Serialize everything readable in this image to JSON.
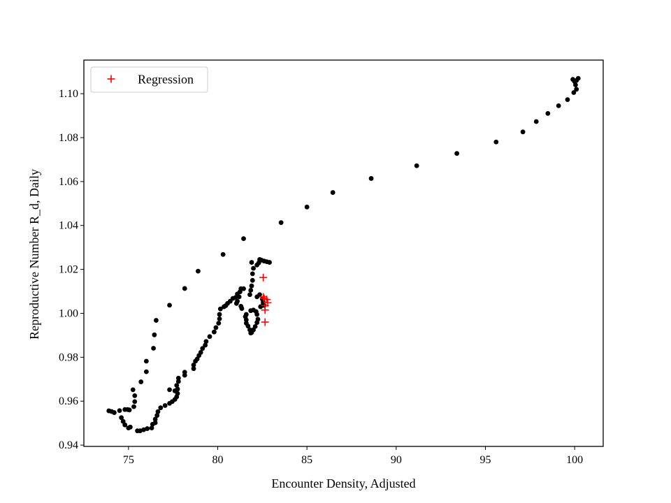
{
  "chart_data": {
    "type": "scatter",
    "title": "",
    "xlabel": "Encounter Density, Adjusted",
    "ylabel": "Reproductive Number R_d, Daily",
    "xlim": [
      72.5,
      101.6
    ],
    "ylim": [
      0.9394,
      1.1153
    ],
    "xticks": [
      75,
      80,
      85,
      90,
      95,
      100
    ],
    "yticks": [
      0.94,
      0.96,
      0.98,
      1.0,
      1.02,
      1.04,
      1.06,
      1.08,
      1.1
    ],
    "ytick_labels": [
      "0.94",
      "0.96",
      "0.98",
      "1.00",
      "1.02",
      "1.04",
      "1.06",
      "1.08",
      "1.10"
    ],
    "legend": {
      "position": "top-left",
      "entries": [
        {
          "label": "Regression",
          "marker": "plus",
          "color": "#ff0000"
        }
      ]
    },
    "colors": {
      "data": "#000000",
      "regression": "#ff0000"
    },
    "series": [
      {
        "name": "data",
        "marker": "dot",
        "color": "#000000",
        "points": [
          [
            100.2,
            1.107
          ],
          [
            100.1,
            1.106
          ],
          [
            99.9,
            1.1065
          ],
          [
            100.0,
            1.1055
          ],
          [
            100.05,
            1.104
          ],
          [
            100.1,
            1.102
          ],
          [
            99.95,
            1.1005
          ],
          [
            99.6,
            1.0973
          ],
          [
            99.1,
            1.0945
          ],
          [
            98.5,
            1.091
          ],
          [
            97.85,
            1.0873
          ],
          [
            97.1,
            1.0826
          ],
          [
            95.6,
            1.078
          ],
          [
            93.4,
            1.0728
          ],
          [
            91.15,
            1.0672
          ],
          [
            88.6,
            1.0614
          ],
          [
            86.45,
            1.055
          ],
          [
            85.0,
            1.0484
          ],
          [
            83.55,
            1.0413
          ],
          [
            81.45,
            1.034
          ],
          [
            80.3,
            1.0268
          ],
          [
            78.9,
            1.0192
          ],
          [
            78.15,
            1.0113
          ],
          [
            77.3,
            1.0037
          ],
          [
            76.55,
            0.9968
          ],
          [
            76.45,
            0.9902
          ],
          [
            76.4,
            0.9841
          ],
          [
            76.0,
            0.9782
          ],
          [
            76.0,
            0.9734
          ],
          [
            75.7,
            0.9688
          ],
          [
            75.25,
            0.9652
          ],
          [
            75.35,
            0.9625
          ],
          [
            75.35,
            0.9598
          ],
          [
            75.3,
            0.9575
          ],
          [
            75.05,
            0.956
          ],
          [
            74.95,
            0.9562
          ],
          [
            74.8,
            0.9562
          ],
          [
            74.5,
            0.9557
          ],
          [
            74.2,
            0.9548
          ],
          [
            74.05,
            0.9553
          ],
          [
            73.9,
            0.9556
          ],
          [
            74.6,
            0.9525
          ],
          [
            74.7,
            0.9508
          ],
          [
            74.8,
            0.9492
          ],
          [
            75.0,
            0.9478
          ],
          [
            75.1,
            0.9482
          ],
          [
            75.5,
            0.9465
          ],
          [
            75.65,
            0.9465
          ],
          [
            75.85,
            0.947
          ],
          [
            76.05,
            0.9475
          ],
          [
            76.3,
            0.9478
          ],
          [
            76.35,
            0.9495
          ],
          [
            76.5,
            0.9502
          ],
          [
            76.5,
            0.9518
          ],
          [
            76.6,
            0.9535
          ],
          [
            76.65,
            0.9552
          ],
          [
            76.8,
            0.957
          ],
          [
            77.05,
            0.958
          ],
          [
            77.3,
            0.959
          ],
          [
            77.45,
            0.9598
          ],
          [
            77.6,
            0.9608
          ],
          [
            77.7,
            0.962
          ],
          [
            77.75,
            0.9635
          ],
          [
            77.75,
            0.9655
          ],
          [
            77.7,
            0.9672
          ],
          [
            77.8,
            0.969
          ],
          [
            77.8,
            0.9705
          ],
          [
            77.3,
            0.9652
          ],
          [
            77.6,
            0.9647
          ],
          [
            78.15,
            0.9718
          ],
          [
            78.15,
            0.9732
          ],
          [
            78.65,
            0.9748
          ],
          [
            78.65,
            0.9765
          ],
          [
            78.75,
            0.9782
          ],
          [
            78.85,
            0.9792
          ],
          [
            78.95,
            0.9808
          ],
          [
            79.05,
            0.9822
          ],
          [
            79.15,
            0.984
          ],
          [
            79.3,
            0.9855
          ],
          [
            79.35,
            0.9872
          ],
          [
            79.55,
            0.9894
          ],
          [
            79.8,
            0.9915
          ],
          [
            79.9,
            0.9935
          ],
          [
            80.05,
            0.9955
          ],
          [
            80.1,
            0.9975
          ],
          [
            80.1,
            0.9995
          ],
          [
            80.15,
            1.002
          ],
          [
            80.35,
            1.003
          ],
          [
            80.45,
            1.0035
          ],
          [
            80.55,
            1.0045
          ],
          [
            80.7,
            1.0055
          ],
          [
            80.85,
            1.0068
          ],
          [
            81.0,
            1.0072
          ],
          [
            81.1,
            1.0088
          ],
          [
            81.25,
            1.0098
          ],
          [
            81.3,
            1.0112
          ],
          [
            81.45,
            1.0112
          ],
          [
            81.2,
            1.0075
          ],
          [
            81.1,
            1.0055
          ],
          [
            81.05,
            1.0045
          ],
          [
            81.3,
            1.0032
          ],
          [
            81.35,
            1.0022
          ],
          [
            81.6,
            0.9995
          ],
          [
            81.55,
            0.9985
          ],
          [
            81.6,
            0.997
          ],
          [
            81.6,
            0.9955
          ],
          [
            81.7,
            0.9942
          ],
          [
            81.8,
            0.9925
          ],
          [
            81.85,
            0.991
          ],
          [
            81.9,
            0.9912
          ],
          [
            82.0,
            0.9925
          ],
          [
            82.1,
            0.994
          ],
          [
            82.2,
            0.9958
          ],
          [
            82.25,
            0.9973
          ],
          [
            82.2,
            0.9995
          ],
          [
            82.15,
            1.0008
          ],
          [
            82.0,
            1.0015
          ],
          [
            81.85,
            1.0012
          ],
          [
            82.4,
            1.003
          ],
          [
            82.55,
            1.0045
          ],
          [
            81.8,
            1.0085
          ],
          [
            81.85,
            1.0105
          ],
          [
            81.9,
            1.0125
          ],
          [
            81.95,
            1.015
          ],
          [
            81.95,
            1.018
          ],
          [
            82.0,
            1.0205
          ],
          [
            82.3,
            1.023
          ],
          [
            82.35,
            1.0245
          ],
          [
            82.45,
            1.0242
          ],
          [
            82.6,
            1.0238
          ],
          [
            82.75,
            1.0235
          ],
          [
            82.9,
            1.0232
          ],
          [
            82.2,
            1.022
          ],
          [
            81.9,
            1.0232
          ],
          [
            82.2,
            1.0075
          ],
          [
            82.35,
            1.0085
          ],
          [
            82.5,
            1.0065
          ],
          [
            82.55,
            1.0052
          ],
          [
            82.6,
            1.0036
          ]
        ]
      },
      {
        "name": "Regression",
        "marker": "plus",
        "color": "#ff0000",
        "points": [
          [
            82.55,
            1.0163
          ],
          [
            82.55,
            1.0075
          ],
          [
            82.6,
            1.0068
          ],
          [
            82.75,
            1.0063
          ],
          [
            82.8,
            1.0048
          ],
          [
            82.65,
            1.0035
          ],
          [
            82.65,
            1.0015
          ],
          [
            82.65,
            0.996
          ]
        ]
      }
    ]
  }
}
